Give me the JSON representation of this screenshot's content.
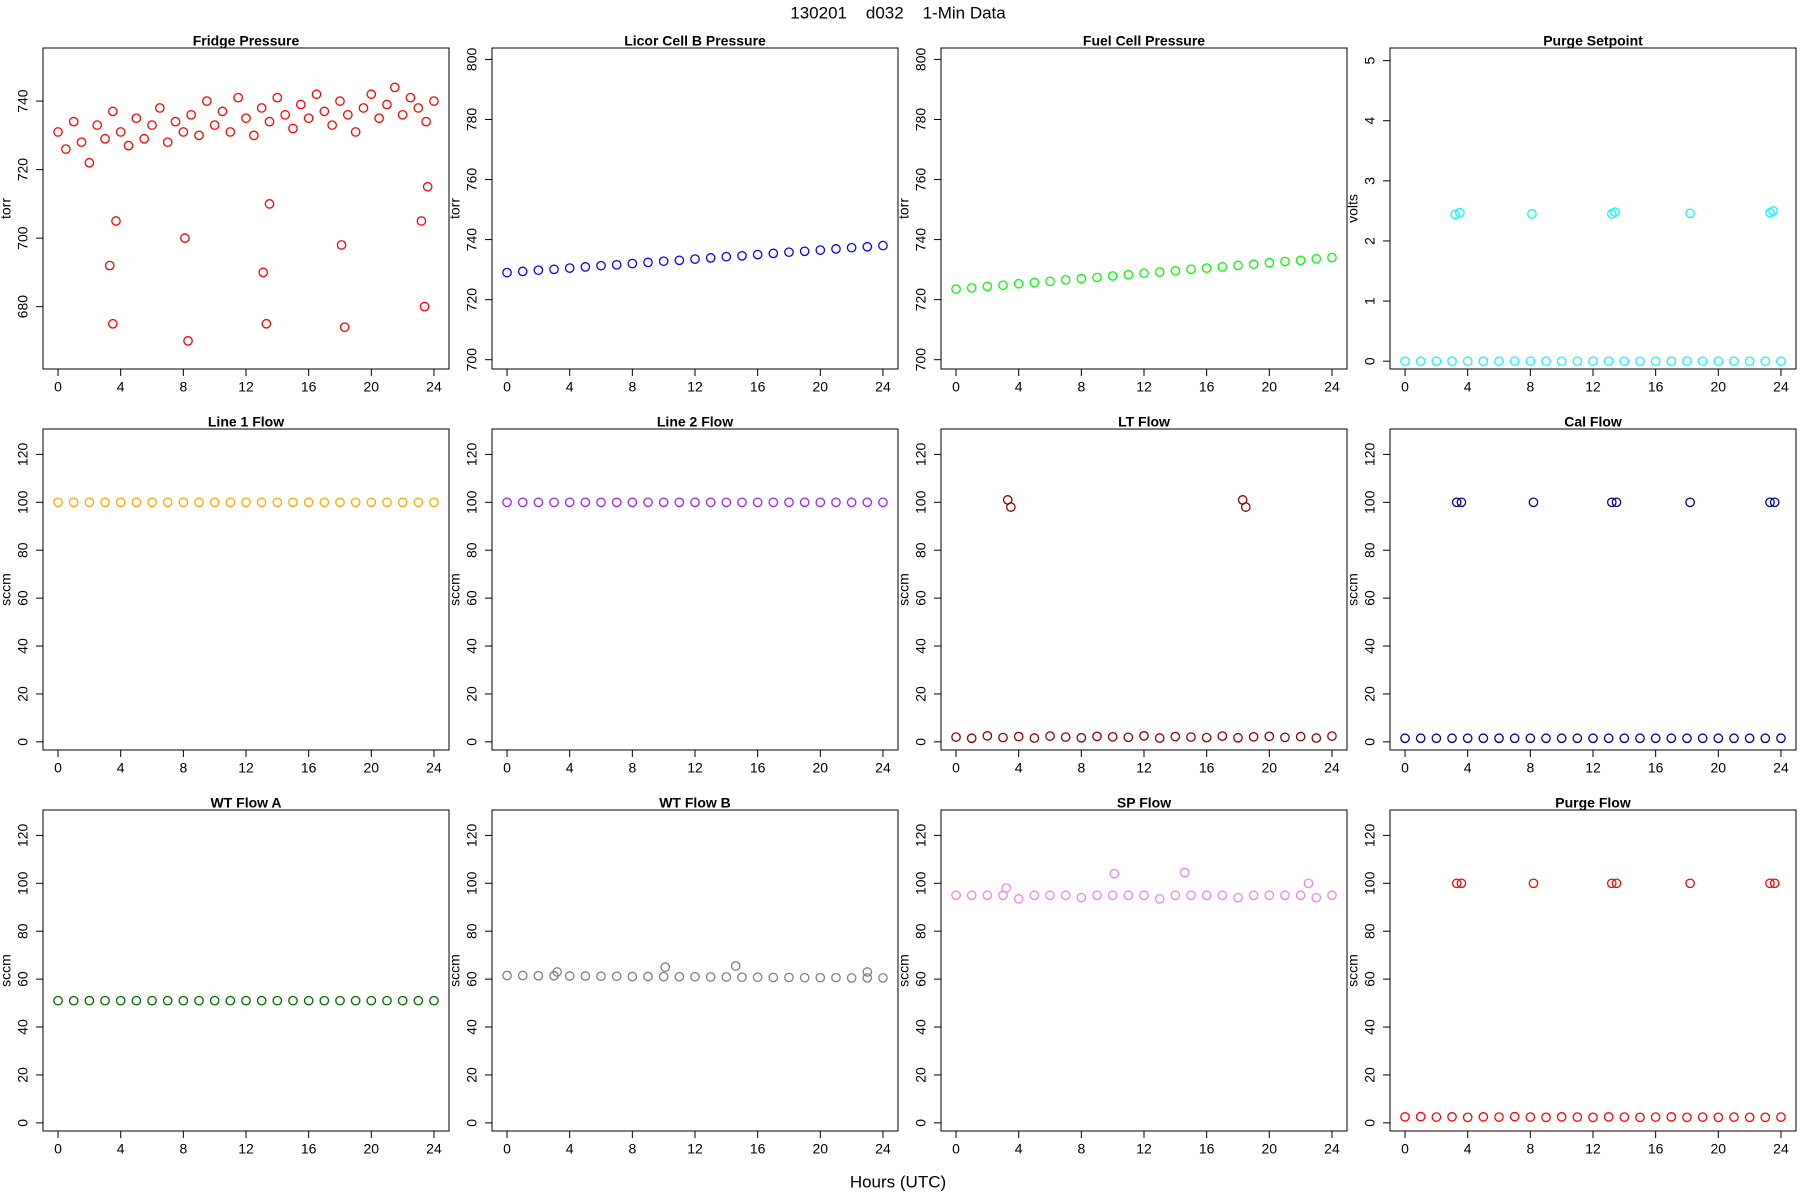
{
  "title": "130201    d032    1-Min Data",
  "xlabel": "Hours (UTC)",
  "chart_data": [
    {
      "type": "scatter",
      "title": "Fridge Pressure",
      "ylabel": "torr",
      "color": "#ff0000",
      "xlim": [
        -0.96,
        24.96
      ],
      "ylim": [
        661.8,
        755.5
      ],
      "xticks": [
        0,
        4,
        8,
        12,
        16,
        20,
        24
      ],
      "yticks": [
        680,
        700,
        720,
        740
      ],
      "x": [
        0,
        0.5,
        1,
        1.5,
        2,
        2.5,
        3,
        3.5,
        4,
        4.5,
        5,
        5.5,
        6,
        6.5,
        7,
        7.5,
        8,
        8.5,
        9,
        9.5,
        10,
        10.5,
        11,
        11.5,
        12,
        12.5,
        13,
        13.5,
        14,
        14.5,
        15,
        15.5,
        16,
        16.5,
        17,
        17.5,
        18,
        18.5,
        19,
        19.5,
        20,
        20.5,
        21,
        21.5,
        22,
        22.5,
        23,
        23.5,
        24,
        3.3,
        3.5,
        3.7,
        8.1,
        8.3,
        13.1,
        13.3,
        13.5,
        18.1,
        18.3,
        23.2,
        23.4,
        23.6
      ],
      "values": [
        731,
        726,
        734,
        728,
        722,
        733,
        729,
        737,
        731,
        727,
        735,
        729,
        733,
        738,
        728,
        734,
        731,
        736,
        730,
        740,
        733,
        737,
        731,
        741,
        735,
        730,
        738,
        734,
        741,
        736,
        732,
        739,
        735,
        742,
        737,
        733,
        740,
        736,
        731,
        738,
        742,
        735,
        739,
        744,
        736,
        741,
        738,
        734,
        740,
        692,
        675,
        705,
        700,
        670,
        690,
        675,
        710,
        698,
        674,
        705,
        680,
        715
      ]
    },
    {
      "type": "scatter",
      "title": "Licor Cell B Pressure",
      "ylabel": "torr",
      "color": "#0000ff",
      "xlim": [
        -0.96,
        24.96
      ],
      "ylim": [
        696.9,
        803.8
      ],
      "xticks": [
        0,
        4,
        8,
        12,
        16,
        20,
        24
      ],
      "yticks": [
        700,
        720,
        740,
        760,
        780,
        800
      ],
      "x": [
        0,
        1,
        2,
        3,
        4,
        5,
        6,
        7,
        8,
        9,
        10,
        11,
        12,
        13,
        14,
        15,
        16,
        17,
        18,
        19,
        20,
        21,
        22,
        23,
        24
      ],
      "values": [
        729,
        729.4,
        729.8,
        730.1,
        730.5,
        730.9,
        731.3,
        731.6,
        732,
        732.4,
        732.8,
        733.1,
        733.5,
        733.9,
        734.3,
        734.6,
        735,
        735.4,
        735.8,
        736.1,
        736.5,
        736.9,
        737.3,
        737.6,
        738
      ]
    },
    {
      "type": "scatter",
      "title": "Fuel Cell Pressure",
      "ylabel": "torr",
      "color": "#00ff00",
      "xlim": [
        -0.96,
        24.96
      ],
      "ylim": [
        696.9,
        803.8
      ],
      "xticks": [
        0,
        4,
        8,
        12,
        16,
        20,
        24
      ],
      "yticks": [
        700,
        720,
        740,
        760,
        780,
        800
      ],
      "x": [
        0,
        1,
        2,
        3,
        4,
        5,
        6,
        7,
        8,
        9,
        10,
        11,
        12,
        13,
        14,
        15,
        16,
        17,
        18,
        19,
        20,
        21,
        22,
        23,
        24
      ],
      "values": [
        723.5,
        723.9,
        724.4,
        724.8,
        725.3,
        725.7,
        726.1,
        726.6,
        727,
        727.4,
        727.9,
        728.3,
        728.8,
        729.2,
        729.6,
        730.1,
        730.5,
        730.9,
        731.4,
        731.8,
        732.3,
        732.7,
        733.1,
        733.6,
        734
      ]
    },
    {
      "type": "scatter",
      "title": "Purge Setpoint",
      "ylabel": "volts",
      "color": "#00ffff",
      "xlim": [
        -0.96,
        24.96
      ],
      "ylim": [
        -0.13,
        5.21
      ],
      "xticks": [
        0,
        4,
        8,
        12,
        16,
        20,
        24
      ],
      "yticks": [
        0,
        1,
        2,
        3,
        4,
        5
      ],
      "x": [
        0,
        1,
        2,
        3,
        4,
        5,
        6,
        7,
        8,
        9,
        10,
        11,
        12,
        13,
        14,
        15,
        16,
        17,
        18,
        19,
        20,
        21,
        22,
        23,
        24,
        3.2,
        3.5,
        8.1,
        13.2,
        13.4,
        18.2,
        23.3,
        23.5
      ],
      "values": [
        0,
        0,
        0,
        0,
        0,
        0,
        0,
        0,
        0,
        0,
        0,
        0,
        0,
        0,
        0,
        0,
        0,
        0,
        0,
        0,
        0,
        0,
        0,
        0,
        0,
        2.44,
        2.47,
        2.45,
        2.45,
        2.48,
        2.46,
        2.47,
        2.5
      ]
    },
    {
      "type": "scatter",
      "title": "Line 1 Flow",
      "ylabel": "sccm",
      "color": "#ffa500",
      "xlim": [
        -0.96,
        24.96
      ],
      "ylim": [
        -3.4,
        130.6
      ],
      "xticks": [
        0,
        4,
        8,
        12,
        16,
        20,
        24
      ],
      "yticks": [
        0,
        20,
        40,
        60,
        80,
        100,
        120
      ],
      "x": [
        0,
        1,
        2,
        3,
        4,
        5,
        6,
        7,
        8,
        9,
        10,
        11,
        12,
        13,
        14,
        15,
        16,
        17,
        18,
        19,
        20,
        21,
        22,
        23,
        24
      ],
      "values": [
        100,
        100,
        100,
        100,
        100,
        100,
        100,
        100,
        100,
        100,
        100,
        100,
        100,
        100,
        100,
        100,
        100,
        100,
        100,
        100,
        100,
        100,
        100,
        100,
        100
      ]
    },
    {
      "type": "scatter",
      "title": "Line 2 Flow",
      "ylabel": "sccm",
      "color": "#a020f0",
      "xlim": [
        -0.96,
        24.96
      ],
      "ylim": [
        -3.4,
        130.6
      ],
      "xticks": [
        0,
        4,
        8,
        12,
        16,
        20,
        24
      ],
      "yticks": [
        0,
        20,
        40,
        60,
        80,
        100,
        120
      ],
      "x": [
        0,
        1,
        2,
        3,
        4,
        5,
        6,
        7,
        8,
        9,
        10,
        11,
        12,
        13,
        14,
        15,
        16,
        17,
        18,
        19,
        20,
        21,
        22,
        23,
        24
      ],
      "values": [
        100,
        100,
        100,
        100,
        100,
        100,
        100,
        100,
        100,
        100,
        100,
        100,
        100,
        100,
        100,
        100,
        100,
        100,
        100,
        100,
        100,
        100,
        100,
        100,
        100
      ]
    },
    {
      "type": "scatter",
      "title": "LT Flow",
      "ylabel": "sccm",
      "color": "#8b0000",
      "xlim": [
        -0.96,
        24.96
      ],
      "ylim": [
        -3.4,
        130.6
      ],
      "xticks": [
        0,
        4,
        8,
        12,
        16,
        20,
        24
      ],
      "yticks": [
        0,
        20,
        40,
        60,
        80,
        100,
        120
      ],
      "x": [
        0,
        1,
        2,
        3,
        4,
        5,
        6,
        7,
        8,
        9,
        10,
        11,
        12,
        13,
        14,
        15,
        16,
        17,
        18,
        19,
        20,
        21,
        22,
        23,
        24,
        3.3,
        3.5,
        18.3,
        18.5
      ],
      "values": [
        2,
        1.5,
        2.5,
        1.8,
        2.2,
        1.6,
        2.4,
        2,
        1.7,
        2.3,
        2.1,
        1.9,
        2.5,
        1.6,
        2.2,
        2,
        1.8,
        2.4,
        1.7,
        2.1,
        2.3,
        1.9,
        2.2,
        1.6,
        2.4,
        101,
        98,
        101,
        98
      ]
    },
    {
      "type": "scatter",
      "title": "Cal Flow",
      "ylabel": "sccm",
      "color": "#00008b",
      "xlim": [
        -0.96,
        24.96
      ],
      "ylim": [
        -3.4,
        130.6
      ],
      "xticks": [
        0,
        4,
        8,
        12,
        16,
        20,
        24
      ],
      "yticks": [
        0,
        20,
        40,
        60,
        80,
        100,
        120
      ],
      "x": [
        0,
        1,
        2,
        3,
        4,
        5,
        6,
        7,
        8,
        9,
        10,
        11,
        12,
        13,
        14,
        15,
        16,
        17,
        18,
        19,
        20,
        21,
        22,
        23,
        24,
        3.3,
        3.6,
        8.2,
        13.2,
        13.5,
        18.2,
        23.3,
        23.6
      ],
      "values": [
        1.5,
        1.5,
        1.5,
        1.5,
        1.5,
        1.5,
        1.5,
        1.5,
        1.5,
        1.5,
        1.5,
        1.5,
        1.5,
        1.5,
        1.5,
        1.5,
        1.5,
        1.5,
        1.5,
        1.5,
        1.5,
        1.5,
        1.5,
        1.5,
        1.5,
        100,
        100,
        100,
        100,
        100,
        100,
        100,
        100
      ]
    },
    {
      "type": "scatter",
      "title": "WT Flow A",
      "ylabel": "sccm",
      "color": "#006400",
      "xlim": [
        -0.96,
        24.96
      ],
      "ylim": [
        -3.4,
        130.6
      ],
      "xticks": [
        0,
        4,
        8,
        12,
        16,
        20,
        24
      ],
      "yticks": [
        0,
        20,
        40,
        60,
        80,
        100,
        120
      ],
      "x": [
        0,
        1,
        2,
        3,
        4,
        5,
        6,
        7,
        8,
        9,
        10,
        11,
        12,
        13,
        14,
        15,
        16,
        17,
        18,
        19,
        20,
        21,
        22,
        23,
        24
      ],
      "values": [
        51,
        51,
        51,
        51,
        51,
        51,
        51,
        51,
        51,
        51,
        51,
        51,
        51,
        51,
        51,
        51,
        51,
        51,
        51,
        51,
        51,
        51,
        51,
        51,
        51
      ]
    },
    {
      "type": "scatter",
      "title": "WT Flow B",
      "ylabel": "sccm",
      "color": "#808080",
      "xlim": [
        -0.96,
        24.96
      ],
      "ylim": [
        -3.4,
        130.6
      ],
      "xticks": [
        0,
        4,
        8,
        12,
        16,
        20,
        24
      ],
      "yticks": [
        0,
        20,
        40,
        60,
        80,
        100,
        120
      ],
      "x": [
        0,
        1,
        2,
        3,
        4,
        5,
        6,
        7,
        8,
        9,
        10,
        11,
        12,
        13,
        14,
        15,
        16,
        17,
        18,
        19,
        20,
        21,
        22,
        23,
        24,
        10.1,
        14.6,
        3.2,
        23
      ],
      "values": [
        61.5,
        61.5,
        61.4,
        61.4,
        61.3,
        61.3,
        61.2,
        61.2,
        61.1,
        61.1,
        61,
        61,
        61,
        60.9,
        60.9,
        60.8,
        60.8,
        60.7,
        60.7,
        60.6,
        60.6,
        60.6,
        60.5,
        60.5,
        60.5,
        65,
        65.5,
        63,
        63
      ]
    },
    {
      "type": "scatter",
      "title": "SP Flow",
      "ylabel": "sccm",
      "color": "#ee82ee",
      "xlim": [
        -0.96,
        24.96
      ],
      "ylim": [
        -3.4,
        130.6
      ],
      "xticks": [
        0,
        4,
        8,
        12,
        16,
        20,
        24
      ],
      "yticks": [
        0,
        20,
        40,
        60,
        80,
        100,
        120
      ],
      "x": [
        0,
        1,
        2,
        3,
        4,
        5,
        6,
        7,
        8,
        9,
        10,
        11,
        12,
        13,
        14,
        15,
        16,
        17,
        18,
        19,
        20,
        21,
        22,
        23,
        24,
        10.1,
        14.6,
        3.2,
        22.5
      ],
      "values": [
        95,
        95,
        95,
        95,
        93.5,
        95,
        95,
        95,
        94,
        95,
        95,
        95,
        95,
        93.5,
        95,
        95,
        95,
        95,
        94,
        95,
        95,
        95,
        95,
        94,
        95,
        104,
        104.5,
        98,
        100
      ]
    },
    {
      "type": "scatter",
      "title": "Purge Flow",
      "ylabel": "sccm",
      "color": "#ff0000",
      "xlim": [
        -0.96,
        24.96
      ],
      "ylim": [
        -3.4,
        130.6
      ],
      "xticks": [
        0,
        4,
        8,
        12,
        16,
        20,
        24
      ],
      "yticks": [
        0,
        20,
        40,
        60,
        80,
        100,
        120
      ],
      "x": [
        0,
        1,
        2,
        3,
        4,
        5,
        6,
        7,
        8,
        9,
        10,
        11,
        12,
        13,
        14,
        15,
        16,
        17,
        18,
        19,
        20,
        21,
        22,
        23,
        24,
        3.3,
        3.6,
        8.2,
        13.2,
        13.5,
        18.2,
        23.3,
        23.6
      ],
      "values": [
        2.5,
        2.6,
        2.4,
        2.5,
        2.3,
        2.5,
        2.4,
        2.6,
        2.4,
        2.3,
        2.5,
        2.4,
        2.3,
        2.5,
        2.4,
        2.3,
        2.4,
        2.5,
        2.3,
        2.4,
        2.3,
        2.4,
        2.3,
        2.3,
        2.4,
        100,
        100,
        100,
        100,
        100,
        100,
        100,
        100
      ]
    }
  ]
}
